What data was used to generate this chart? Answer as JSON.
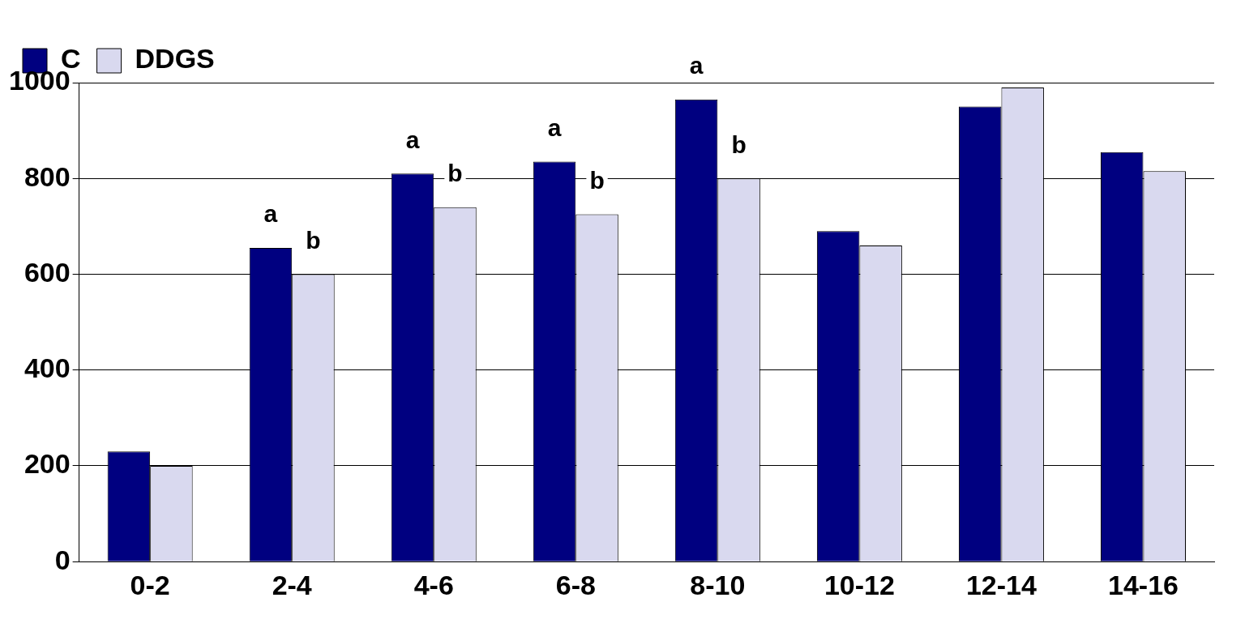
{
  "chart_data": {
    "type": "bar",
    "categories": [
      "0-2",
      "2-4",
      "4-6",
      "6-8",
      "8-10",
      "10-12",
      "12-14",
      "14-16"
    ],
    "series": [
      {
        "name": "C",
        "color": "#000080",
        "values": [
          230,
          655,
          810,
          835,
          965,
          690,
          950,
          855
        ]
      },
      {
        "name": "DDGS",
        "color": "#d9d9ef",
        "values": [
          200,
          600,
          740,
          725,
          800,
          660,
          990,
          815
        ]
      }
    ],
    "ylim": [
      0,
      1000
    ],
    "yticks": [
      0,
      200,
      400,
      600,
      800,
      1000
    ],
    "grid": "y",
    "legend": "top left",
    "annotations": [
      {
        "text": "a",
        "x": "2-4",
        "y": 655
      },
      {
        "text": "b",
        "x": "2-4",
        "y": 600
      },
      {
        "text": "a",
        "x": "4-6",
        "y": 810
      },
      {
        "text": "b",
        "x": "4-6",
        "y": 740
      },
      {
        "text": "a",
        "x": "6-8",
        "y": 835
      },
      {
        "text": "b",
        "x": "6-8",
        "y": 725
      },
      {
        "text": "a",
        "x": "8-10",
        "y": 965
      },
      {
        "text": "b",
        "x": "8-10",
        "y": 800
      }
    ]
  }
}
